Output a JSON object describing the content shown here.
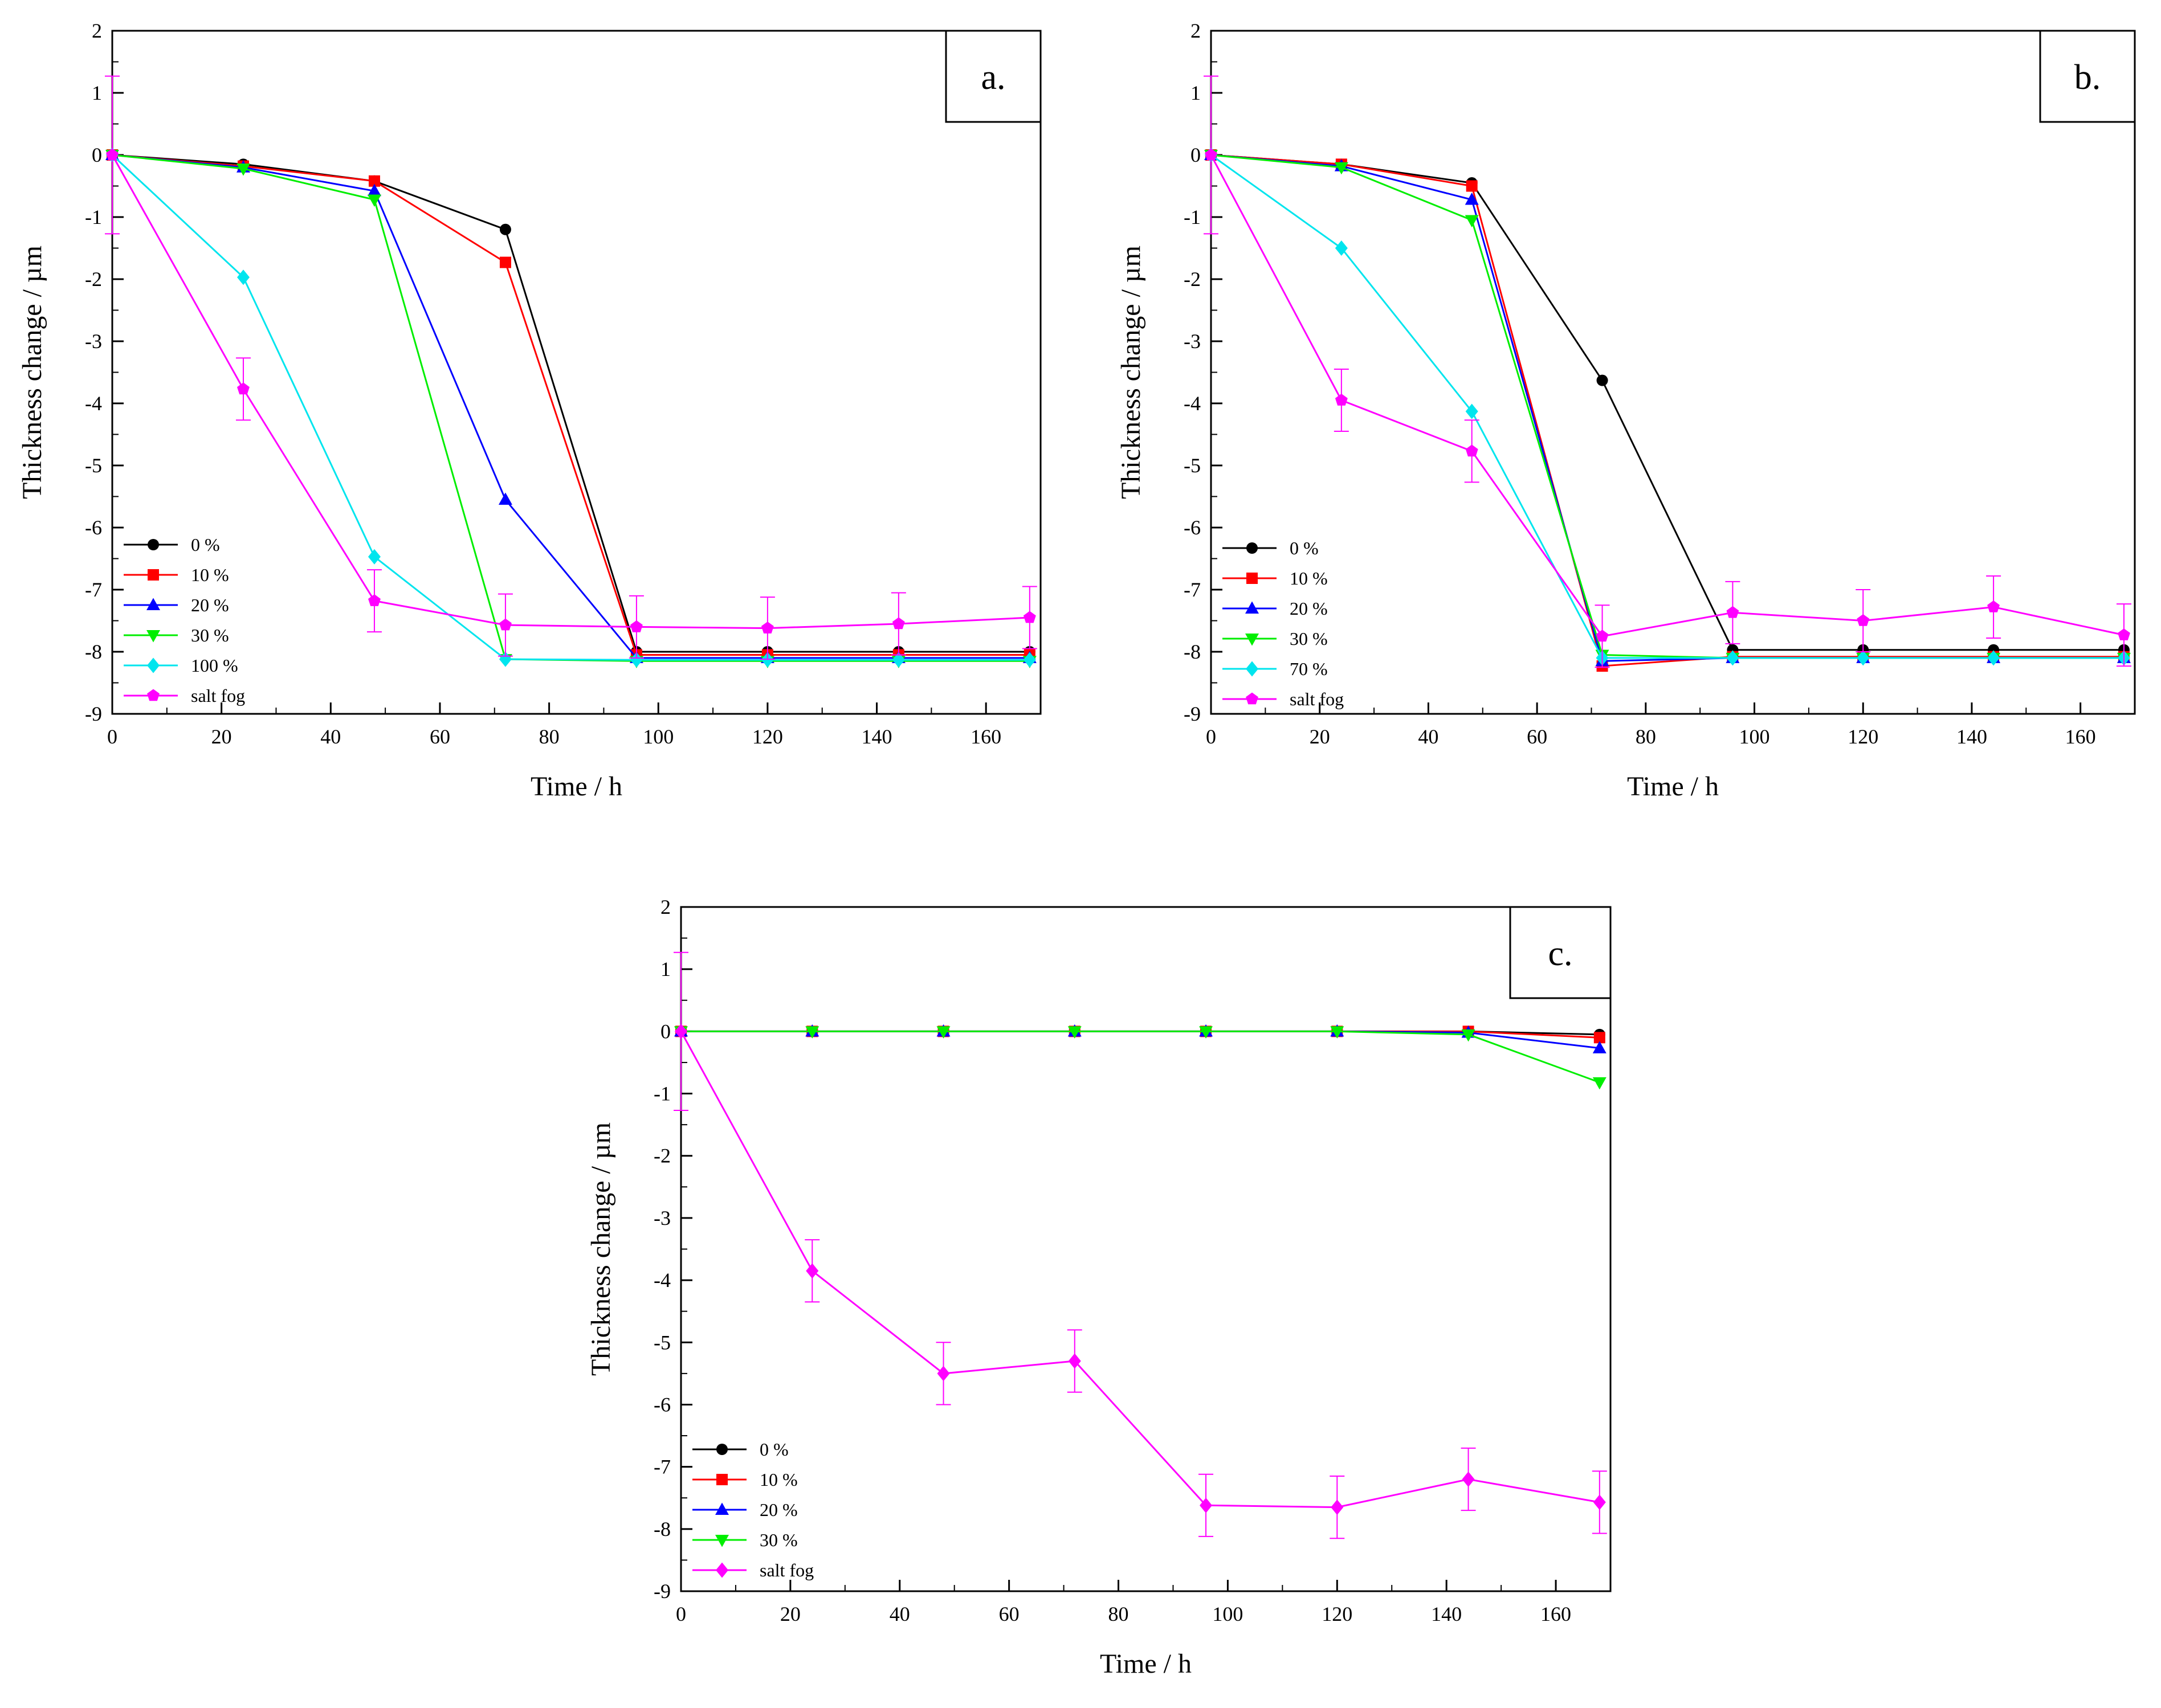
{
  "figure": {
    "description_axes": "Thickness change vs time, three panels",
    "chart_data": [
      {
        "panel": "a",
        "type": "line",
        "title": "",
        "panel_label": "a.",
        "xlabel": "Time / h",
        "ylabel": "Thickness change / µm",
        "xlim": [
          0,
          170
        ],
        "ylim": [
          -9,
          2
        ],
        "xticks": [
          0,
          20,
          40,
          60,
          80,
          100,
          120,
          140,
          160
        ],
        "yticks": [
          2,
          1,
          0,
          -1,
          -2,
          -3,
          -4,
          -5,
          -6,
          -7,
          -8,
          -9
        ],
        "legend_position": "bottom-left",
        "series": [
          {
            "name": "0 %",
            "color": "#000000",
            "marker": "circle",
            "x": [
              0,
              24,
              48,
              72,
              96,
              120,
              144,
              168
            ],
            "y": [
              0,
              -0.15,
              -0.42,
              -1.2,
              -8.0,
              -8.0,
              -8.0,
              -8.0
            ]
          },
          {
            "name": "10 %",
            "color": "#ff0000",
            "marker": "square",
            "x": [
              0,
              24,
              48,
              72,
              96,
              120,
              144,
              168
            ],
            "y": [
              0,
              -0.18,
              -0.42,
              -1.73,
              -8.05,
              -8.05,
              -8.05,
              -8.05
            ]
          },
          {
            "name": "20 %",
            "color": "#0000ff",
            "marker": "triangle-up",
            "x": [
              0,
              24,
              48,
              72,
              96,
              120,
              144,
              168
            ],
            "y": [
              0,
              -0.2,
              -0.58,
              -5.55,
              -8.1,
              -8.1,
              -8.1,
              -8.1
            ]
          },
          {
            "name": "30 %",
            "color": "#00ee00",
            "marker": "triangle-down",
            "x": [
              0,
              24,
              48,
              72,
              96,
              120,
              144,
              168
            ],
            "y": [
              0,
              -0.22,
              -0.72,
              -8.12,
              -8.15,
              -8.15,
              -8.15,
              -8.15
            ]
          },
          {
            "name": "100 %",
            "color": "#00e5ee",
            "marker": "diamond",
            "x": [
              0,
              24,
              48,
              72,
              96,
              120,
              144,
              168
            ],
            "y": [
              0,
              -1.97,
              -6.47,
              -8.12,
              -8.13,
              -8.13,
              -8.13,
              -8.13
            ]
          },
          {
            "name": "salt fog",
            "color": "#ff00ff",
            "marker": "pentagon",
            "x": [
              0,
              24,
              48,
              72,
              96,
              120,
              144,
              168
            ],
            "y": [
              0,
              -3.77,
              -7.18,
              -7.57,
              -7.6,
              -7.62,
              -7.55,
              -7.45
            ],
            "error": [
              1.27,
              0.5,
              0.5,
              0.5,
              0.5,
              0.5,
              0.5,
              0.5
            ]
          }
        ]
      },
      {
        "panel": "b",
        "type": "line",
        "title": "",
        "panel_label": "b.",
        "xlabel": "Time / h",
        "ylabel": "Thickness change / µm",
        "xlim": [
          0,
          170
        ],
        "ylim": [
          -9,
          2
        ],
        "xticks": [
          0,
          20,
          40,
          60,
          80,
          100,
          120,
          140,
          160
        ],
        "yticks": [
          2,
          1,
          0,
          -1,
          -2,
          -3,
          -4,
          -5,
          -6,
          -7,
          -8,
          -9
        ],
        "legend_position": "bottom-left",
        "series": [
          {
            "name": "0 %",
            "color": "#000000",
            "marker": "circle",
            "x": [
              0,
              24,
              48,
              72,
              96,
              120,
              144,
              168
            ],
            "y": [
              0,
              -0.15,
              -0.45,
              -3.63,
              -7.97,
              -7.97,
              -7.97,
              -7.97
            ]
          },
          {
            "name": "10 %",
            "color": "#ff0000",
            "marker": "square",
            "x": [
              0,
              24,
              48,
              72,
              96,
              120,
              144,
              168
            ],
            "y": [
              0,
              -0.15,
              -0.5,
              -8.23,
              -8.08,
              -8.08,
              -8.08,
              -8.08
            ]
          },
          {
            "name": "20 %",
            "color": "#0000ff",
            "marker": "triangle-up",
            "x": [
              0,
              24,
              48,
              72,
              96,
              120,
              144,
              168
            ],
            "y": [
              0,
              -0.18,
              -0.72,
              -8.15,
              -8.1,
              -8.1,
              -8.1,
              -8.1
            ]
          },
          {
            "name": "30 %",
            "color": "#00ee00",
            "marker": "triangle-down",
            "x": [
              0,
              24,
              48,
              72,
              96,
              120,
              144,
              168
            ],
            "y": [
              0,
              -0.2,
              -1.05,
              -8.05,
              -8.1,
              -8.1,
              -8.1,
              -8.1
            ]
          },
          {
            "name": "70 %",
            "color": "#00e5ee",
            "marker": "diamond",
            "x": [
              0,
              24,
              48,
              72,
              96,
              120,
              144,
              168
            ],
            "y": [
              0,
              -1.5,
              -4.13,
              -8.1,
              -8.1,
              -8.1,
              -8.1,
              -8.1
            ]
          },
          {
            "name": "salt fog",
            "color": "#ff00ff",
            "marker": "pentagon",
            "x": [
              0,
              24,
              48,
              72,
              96,
              120,
              144,
              168
            ],
            "y": [
              0,
              -3.95,
              -4.77,
              -7.75,
              -7.37,
              -7.5,
              -7.28,
              -7.73
            ],
            "error": [
              1.27,
              0.5,
              0.5,
              0.5,
              0.5,
              0.5,
              0.5,
              0.5
            ]
          }
        ]
      },
      {
        "panel": "c",
        "type": "line",
        "title": "",
        "panel_label": "c.",
        "xlabel": "Time / h",
        "ylabel": "Thickness change / µm",
        "xlim": [
          0,
          170
        ],
        "ylim": [
          -9,
          2
        ],
        "xticks": [
          0,
          20,
          40,
          60,
          80,
          100,
          120,
          140,
          160
        ],
        "yticks": [
          2,
          1,
          0,
          -1,
          -2,
          -3,
          -4,
          -5,
          -6,
          -7,
          -8,
          -9
        ],
        "legend_position": "bottom-left",
        "series": [
          {
            "name": "0 %",
            "color": "#000000",
            "marker": "circle",
            "x": [
              0,
              24,
              48,
              72,
              96,
              120,
              144,
              168
            ],
            "y": [
              0,
              0,
              0,
              0,
              0,
              0,
              0,
              -0.05
            ]
          },
          {
            "name": "10 %",
            "color": "#ff0000",
            "marker": "square",
            "x": [
              0,
              24,
              48,
              72,
              96,
              120,
              144,
              168
            ],
            "y": [
              0,
              0,
              0,
              0,
              0,
              0,
              0,
              -0.1
            ]
          },
          {
            "name": "20 %",
            "color": "#0000ff",
            "marker": "triangle-up",
            "x": [
              0,
              24,
              48,
              72,
              96,
              120,
              144,
              168
            ],
            "y": [
              0,
              0,
              0,
              0,
              0,
              0,
              -0.02,
              -0.27
            ]
          },
          {
            "name": "30 %",
            "color": "#00ee00",
            "marker": "triangle-down",
            "x": [
              0,
              24,
              48,
              72,
              96,
              120,
              144,
              168
            ],
            "y": [
              0,
              0,
              0,
              0,
              0,
              0,
              -0.05,
              -0.82
            ]
          },
          {
            "name": "salt fog",
            "color": "#ff00ff",
            "marker": "diamond",
            "x": [
              0,
              24,
              48,
              72,
              96,
              120,
              144,
              168
            ],
            "y": [
              0,
              -3.85,
              -5.5,
              -5.3,
              -7.62,
              -7.65,
              -7.2,
              -7.57
            ],
            "error": [
              1.27,
              0.5,
              0.5,
              0.5,
              0.5,
              0.5,
              0.5,
              0.5
            ]
          }
        ]
      }
    ]
  }
}
